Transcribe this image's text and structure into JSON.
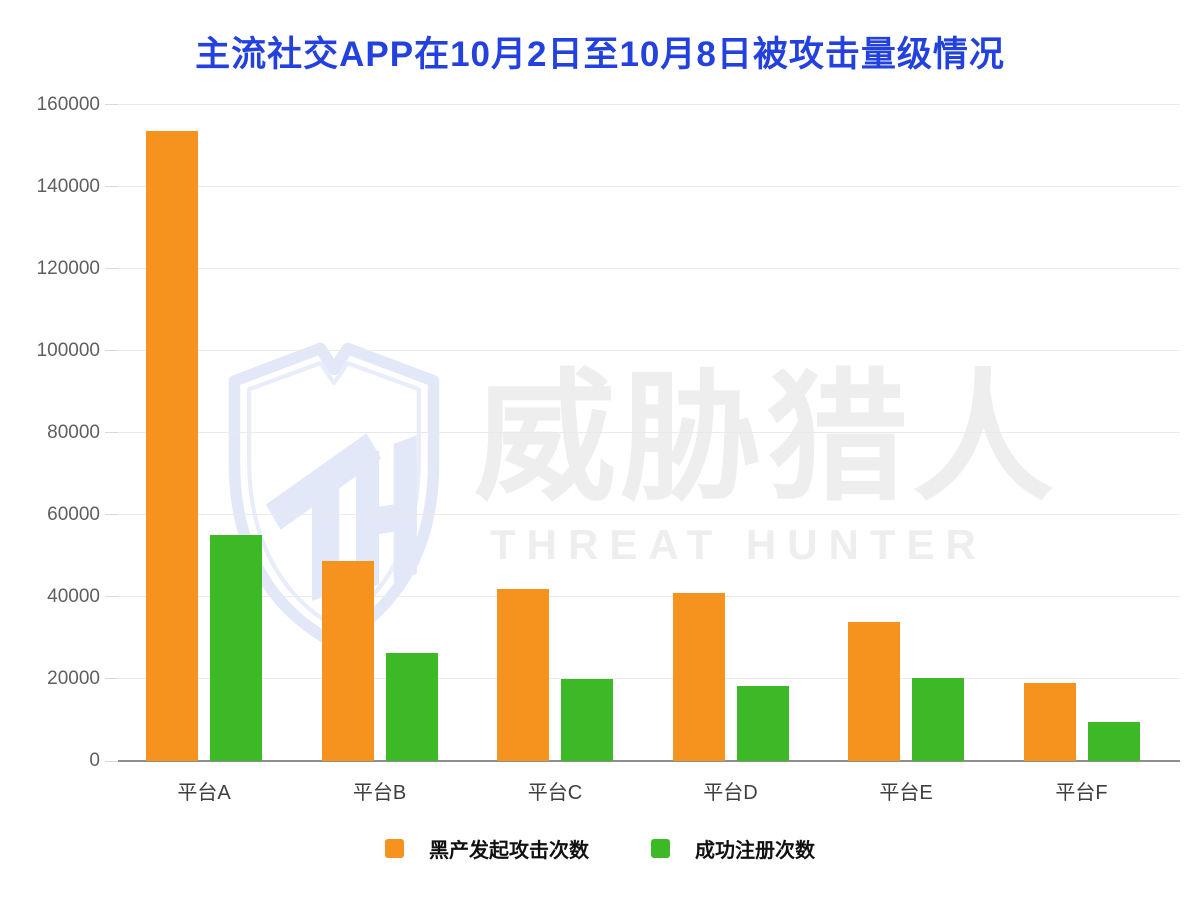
{
  "title": "主流社交APP在10月2日至10月8日被攻击量级情况",
  "watermark": {
    "logo_icon": "threat-hunter-shield",
    "cn_text": "威胁猎人",
    "en_text": "THREAT HUNTER"
  },
  "chart_data": {
    "type": "bar",
    "title": "主流社交APP在10月2日至10月8日被攻击量级情况",
    "categories": [
      "平台A",
      "平台B",
      "平台C",
      "平台D",
      "平台E",
      "平台F"
    ],
    "series": [
      {
        "name": "黑产发起攻击次数",
        "color": "#F6921E",
        "values": [
          153500,
          48700,
          42000,
          41000,
          33800,
          18900
        ]
      },
      {
        "name": "成功注册次数",
        "color": "#3DB827",
        "values": [
          55000,
          26400,
          20100,
          18200,
          20200,
          9400
        ]
      }
    ],
    "xlabel": "",
    "ylabel": "",
    "ylim": [
      0,
      160000
    ],
    "ytick_interval": 20000,
    "yticks": [
      "0",
      "20000",
      "40000",
      "60000",
      "80000",
      "100000",
      "120000",
      "140000",
      "160000"
    ],
    "grid": true,
    "legend_position": "bottom"
  },
  "colors": {
    "title_blue": "#2341DE",
    "bar_orange": "#F6921E",
    "bar_green": "#3DB827",
    "gridline": "#eaeaea",
    "axis": "#8e8e8e",
    "y_label": "#5f5f5f",
    "x_label": "#3f3f3f",
    "legend_text": "#111111",
    "watermark_gray": "#eeeeee",
    "watermark_blue": "#e2e8f7",
    "background": "#ffffff"
  }
}
